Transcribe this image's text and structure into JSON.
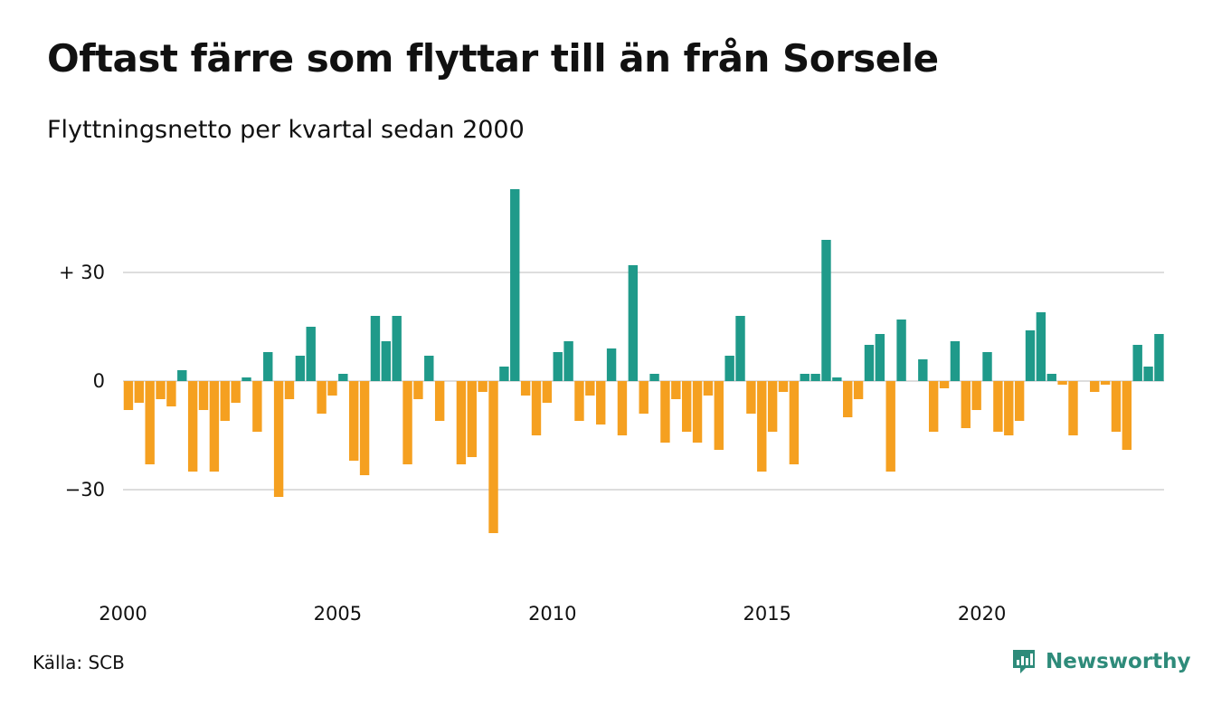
{
  "header": {
    "title": "Oftast färre som flyttar till än från Sorsele",
    "subtitle": "Flyttningsnetto per kvartal sedan 2000"
  },
  "footer": {
    "source": "Källa: SCB",
    "brand": "Newsworthy",
    "brand_icon": "newsworthy-logo-icon"
  },
  "colors": {
    "positive": "#1f9a8a",
    "negative": "#f5a020",
    "grid": "#dddddd",
    "brand": "#2e8b7a"
  },
  "chart_data": {
    "type": "bar",
    "x_start": "2000 Q1",
    "xticks": [
      "2000",
      "2005",
      "2010",
      "2015",
      "2020"
    ],
    "yticks": [
      {
        "value": 30,
        "label": "+ 30"
      },
      {
        "value": 0,
        "label": "0"
      },
      {
        "value": -30,
        "label": "−30"
      }
    ],
    "ylim": [
      -50,
      55
    ],
    "grid": true,
    "values": [
      -8,
      -6,
      -23,
      -5,
      -7,
      3,
      -25,
      -8,
      -25,
      -11,
      -6,
      1,
      -14,
      8,
      -32,
      -5,
      7,
      15,
      -9,
      -4,
      2,
      -22,
      -26,
      18,
      11,
      18,
      -23,
      -5,
      7,
      -11,
      0,
      -23,
      -21,
      -3,
      -42,
      4,
      53,
      -4,
      -15,
      -6,
      8,
      11,
      -11,
      -4,
      -12,
      9,
      -15,
      32,
      -9,
      2,
      -17,
      -5,
      -14,
      -17,
      -4,
      -19,
      7,
      18,
      -9,
      -25,
      -14,
      -3,
      -23,
      2,
      2,
      39,
      1,
      -10,
      -5,
      10,
      13,
      -25,
      17,
      0,
      6,
      -14,
      -2,
      11,
      -13,
      -8,
      8,
      -14,
      -15,
      -11,
      14,
      19,
      2,
      -1,
      -15,
      0,
      -3,
      -1,
      -14,
      -19,
      10,
      4,
      13
    ]
  }
}
